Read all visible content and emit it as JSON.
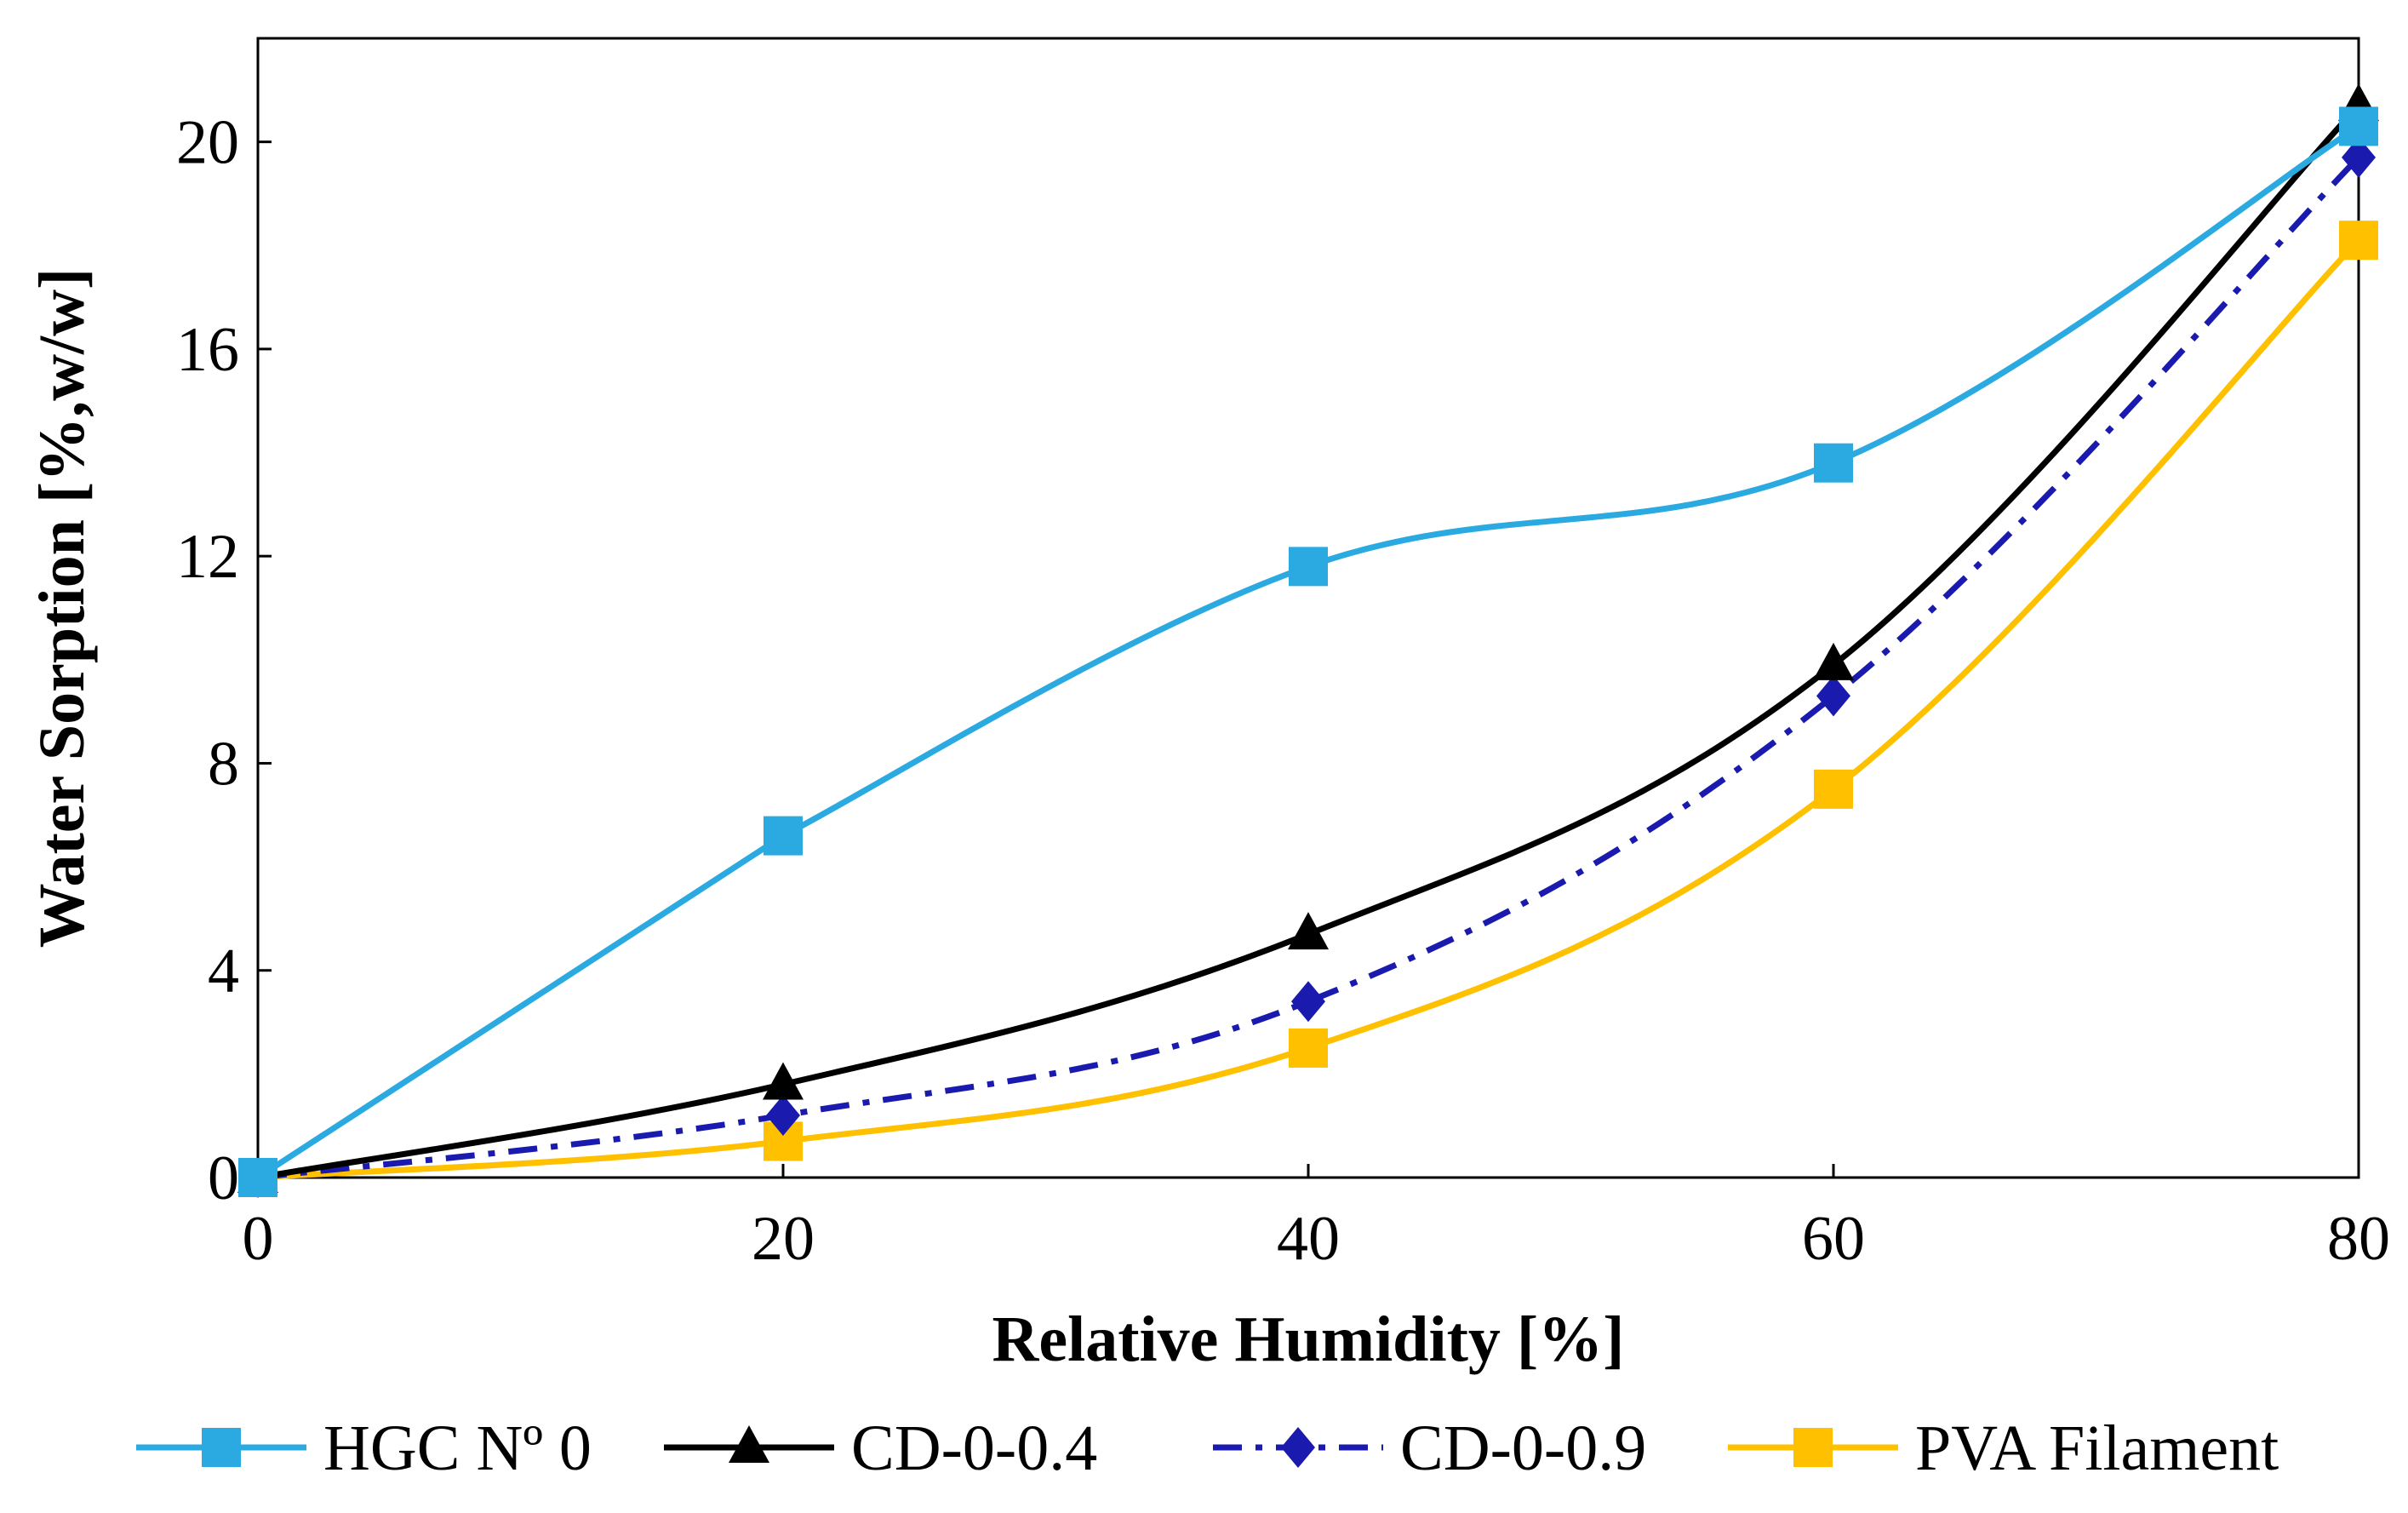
{
  "chart_data": {
    "type": "line",
    "title": "",
    "xlabel": "Relative Humidity [%]",
    "ylabel": "Water Sorption [%,w/w]",
    "xlim": [
      0,
      80
    ],
    "ylim": [
      0,
      22
    ],
    "xticks": [
      "0",
      "20",
      "40",
      "60",
      "80"
    ],
    "yticks": [
      "0",
      "4",
      "8",
      "12",
      "16",
      "20"
    ],
    "grid": false,
    "legend_position": "bottom",
    "x": [
      0,
      20,
      40,
      60,
      80
    ],
    "series": [
      {
        "name": "HGC Nº 0",
        "values": [
          0,
          6.6,
          11.8,
          13.8,
          20.3
        ],
        "color": "#2AAAE0",
        "marker": "square",
        "dash": "solid"
      },
      {
        "name": "CD-0-0.4",
        "values": [
          0,
          1.8,
          4.7,
          9.9,
          20.7
        ],
        "color": "#000000",
        "marker": "triangle",
        "dash": "solid"
      },
      {
        "name": "CD-0-0.9",
        "values": [
          0,
          1.2,
          3.4,
          9.3,
          19.7
        ],
        "color": "#1A1AAE",
        "marker": "diamond",
        "dash": "dashdot"
      },
      {
        "name": "PVA Filament",
        "values": [
          0,
          0.7,
          2.5,
          7.5,
          18.1
        ],
        "color": "#FFC000",
        "marker": "square",
        "dash": "solid"
      }
    ]
  }
}
